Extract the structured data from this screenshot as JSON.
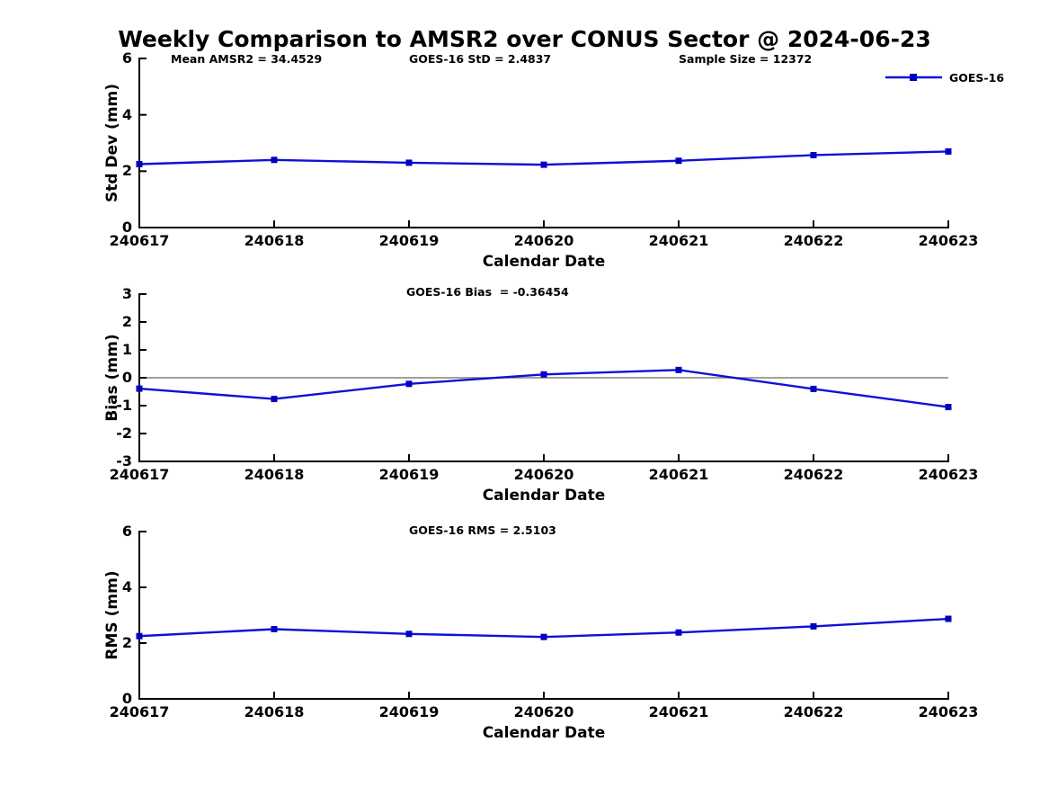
{
  "title": "Weekly Comparison to AMSR2 over CONUS Sector @ 2024-06-23",
  "colors": {
    "line": "#1010d8",
    "marker": "#0000c0",
    "zero_line": "#808080",
    "axis": "#000000",
    "text": "#000000",
    "background": "#ffffff"
  },
  "chart_data": [
    {
      "type": "line",
      "panel": "std-dev",
      "annotations": [
        {
          "text": "Mean AMSR2 = 34.4529"
        },
        {
          "text": "GOES-16 StD = 2.4837"
        },
        {
          "text": "Sample Size = 12372"
        }
      ],
      "x": [
        "240617",
        "240618",
        "240619",
        "240620",
        "240621",
        "240622",
        "240623"
      ],
      "series": [
        {
          "name": "GOES-16",
          "values": [
            2.25,
            2.4,
            2.3,
            2.23,
            2.37,
            2.57,
            2.7
          ]
        }
      ],
      "xlabel": "Calendar Date",
      "ylabel": "Std Dev (mm)",
      "ylim": [
        0,
        6
      ],
      "yticks": [
        0,
        2,
        4,
        6
      ],
      "zero_line": false,
      "legend": {
        "label": "GOES-16",
        "position": "top-right"
      },
      "grid": false
    },
    {
      "type": "line",
      "panel": "bias",
      "annotations": [
        {
          "text": "GOES-16 Bias  = -0.36454"
        }
      ],
      "x": [
        "240617",
        "240618",
        "240619",
        "240620",
        "240621",
        "240622",
        "240623"
      ],
      "series": [
        {
          "name": "GOES-16",
          "values": [
            -0.39,
            -0.76,
            -0.22,
            0.12,
            0.28,
            -0.4,
            -1.05
          ]
        }
      ],
      "xlabel": "Calendar Date",
      "ylabel": "Bias (mm)",
      "ylim": [
        -3,
        3
      ],
      "yticks": [
        -3,
        -2,
        -1,
        0,
        1,
        2,
        3
      ],
      "zero_line": true,
      "grid": false
    },
    {
      "type": "line",
      "panel": "rms",
      "annotations": [
        {
          "text": "GOES-16 RMS = 2.5103"
        }
      ],
      "x": [
        "240617",
        "240618",
        "240619",
        "240620",
        "240621",
        "240622",
        "240623"
      ],
      "series": [
        {
          "name": "GOES-16",
          "values": [
            2.25,
            2.5,
            2.33,
            2.22,
            2.38,
            2.6,
            2.87
          ]
        }
      ],
      "xlabel": "Calendar Date",
      "ylabel": "RMS (mm)",
      "ylim": [
        0,
        6
      ],
      "yticks": [
        0,
        2,
        4,
        6
      ],
      "zero_line": false,
      "grid": false
    }
  ]
}
